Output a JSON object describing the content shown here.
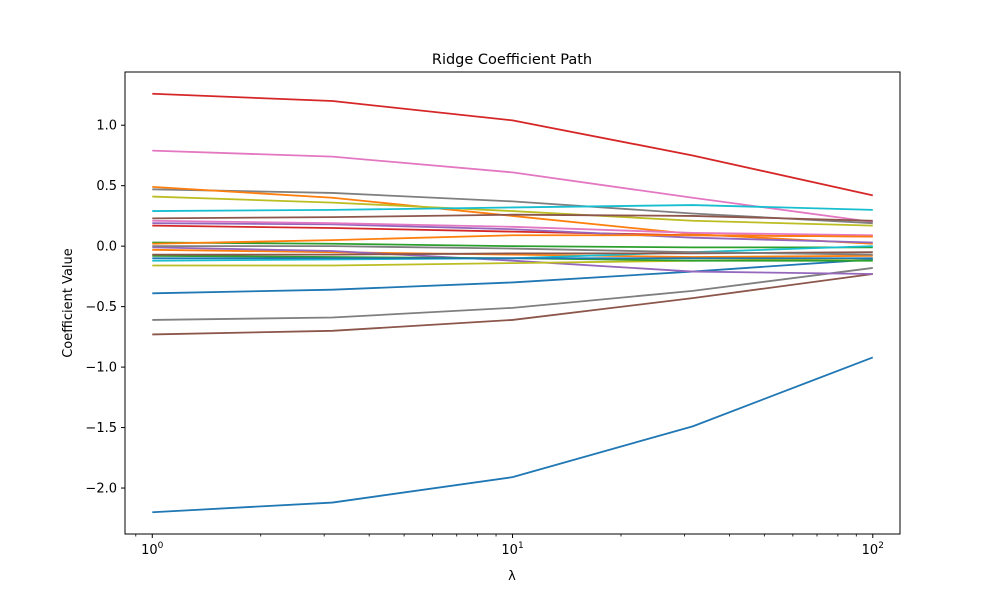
{
  "chart_data": {
    "type": "line",
    "title": "Ridge Coefficient Path",
    "xlabel": "λ",
    "ylabel": "Coefficient Value",
    "xscale": "log",
    "xlim": [
      0.84,
      119
    ],
    "ylim": [
      -2.38,
      1.44
    ],
    "grid": false,
    "x": [
      1,
      3.1623,
      10,
      31.623,
      100
    ],
    "x_ticks": [
      {
        "value": 1,
        "base": "10",
        "exp": "0"
      },
      {
        "value": 10,
        "base": "10",
        "exp": "1"
      },
      {
        "value": 100,
        "base": "10",
        "exp": "2"
      }
    ],
    "y_ticks": [
      {
        "value": 1.0,
        "label": "1.0"
      },
      {
        "value": 0.5,
        "label": "0.5"
      },
      {
        "value": 0.0,
        "label": "0.0"
      },
      {
        "value": -0.5,
        "label": "−0.5"
      },
      {
        "value": -1.0,
        "label": "−1.0"
      },
      {
        "value": -1.5,
        "label": "−1.5"
      },
      {
        "value": -2.0,
        "label": "−2.0"
      }
    ],
    "series": [
      {
        "color": "#1f77b4",
        "values": [
          -2.2,
          -2.12,
          -1.91,
          -1.49,
          -0.92
        ]
      },
      {
        "color": "#d62728",
        "values": [
          1.26,
          1.2,
          1.04,
          0.75,
          0.42
        ]
      },
      {
        "color": "#e377c2",
        "values": [
          0.79,
          0.74,
          0.61,
          0.4,
          0.2
        ]
      },
      {
        "color": "#8c564b",
        "values": [
          -0.73,
          -0.7,
          -0.61,
          -0.43,
          -0.23
        ]
      },
      {
        "color": "#7f7f7f",
        "values": [
          -0.61,
          -0.59,
          -0.51,
          -0.37,
          -0.18
        ]
      },
      {
        "color": "#1f77b4",
        "values": [
          -0.39,
          -0.36,
          -0.3,
          -0.21,
          -0.11
        ]
      },
      {
        "color": "#7f7f7f",
        "values": [
          0.47,
          0.44,
          0.37,
          0.27,
          0.19
        ]
      },
      {
        "color": "#ff7f0e",
        "values": [
          0.49,
          0.4,
          0.25,
          0.1,
          0.02
        ]
      },
      {
        "color": "#bcbd22",
        "values": [
          0.41,
          0.36,
          0.29,
          0.21,
          0.17
        ]
      },
      {
        "color": "#17becf",
        "values": [
          0.29,
          0.3,
          0.32,
          0.34,
          0.3
        ]
      },
      {
        "color": "#8c564b",
        "values": [
          0.23,
          0.24,
          0.26,
          0.25,
          0.21
        ]
      },
      {
        "color": "#d62728",
        "values": [
          0.17,
          0.15,
          0.12,
          0.09,
          0.08
        ]
      },
      {
        "color": "#9467bd",
        "values": [
          0.19,
          0.18,
          0.14,
          0.07,
          0.03
        ]
      },
      {
        "color": "#e377c2",
        "values": [
          0.21,
          0.19,
          0.16,
          0.11,
          0.09
        ]
      },
      {
        "color": "#2ca02c",
        "values": [
          0.03,
          0.02,
          0.0,
          -0.01,
          -0.01
        ]
      },
      {
        "color": "#ff7f0e",
        "values": [
          0.02,
          0.05,
          0.09,
          0.09,
          0.08
        ]
      },
      {
        "color": "#ff7f0e",
        "values": [
          -0.03,
          -0.05,
          -0.07,
          -0.09,
          -0.08
        ]
      },
      {
        "color": "#9467bd",
        "values": [
          -0.01,
          -0.04,
          -0.12,
          -0.21,
          -0.23
        ]
      },
      {
        "color": "#bcbd22",
        "values": [
          -0.16,
          -0.16,
          -0.14,
          -0.12,
          -0.1
        ]
      },
      {
        "color": "#17becf",
        "values": [
          -0.12,
          -0.11,
          -0.1,
          -0.05,
          0.0
        ]
      },
      {
        "color": "#2ca02c",
        "values": [
          -0.08,
          -0.09,
          -0.1,
          -0.12,
          -0.12
        ]
      },
      {
        "color": "#1f77b4",
        "values": [
          -0.1,
          -0.1,
          -0.1,
          -0.1,
          -0.1
        ]
      },
      {
        "color": "#8c564b",
        "values": [
          -0.07,
          -0.07,
          -0.06,
          -0.06,
          -0.05
        ]
      },
      {
        "color": "#7f7f7f",
        "values": [
          0.0,
          0.0,
          -0.02,
          -0.05,
          -0.07
        ]
      }
    ]
  }
}
